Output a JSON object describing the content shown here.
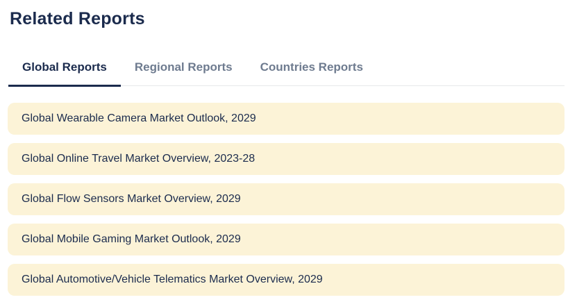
{
  "section": {
    "title": "Related Reports"
  },
  "tabs": [
    {
      "label": "Global Reports",
      "active": true
    },
    {
      "label": "Regional Reports",
      "active": false
    },
    {
      "label": "Countries Reports",
      "active": false
    }
  ],
  "reports": [
    "Global Wearable Camera Market Outlook, 2029",
    "Global Online Travel Market Overview, 2023-28",
    "Global Flow Sensors Market Overview, 2029",
    "Global Mobile Gaming Market Outlook, 2029",
    "Global Automotive/Vehicle Telematics Market Overview, 2029"
  ],
  "colors": {
    "navy": "#1b2b4d",
    "inactive_tab_gray": "#6e7b8f",
    "card_background": "#fcf3d7",
    "divider_gray": "#e7e8ea",
    "page_background": "#ffffff"
  }
}
